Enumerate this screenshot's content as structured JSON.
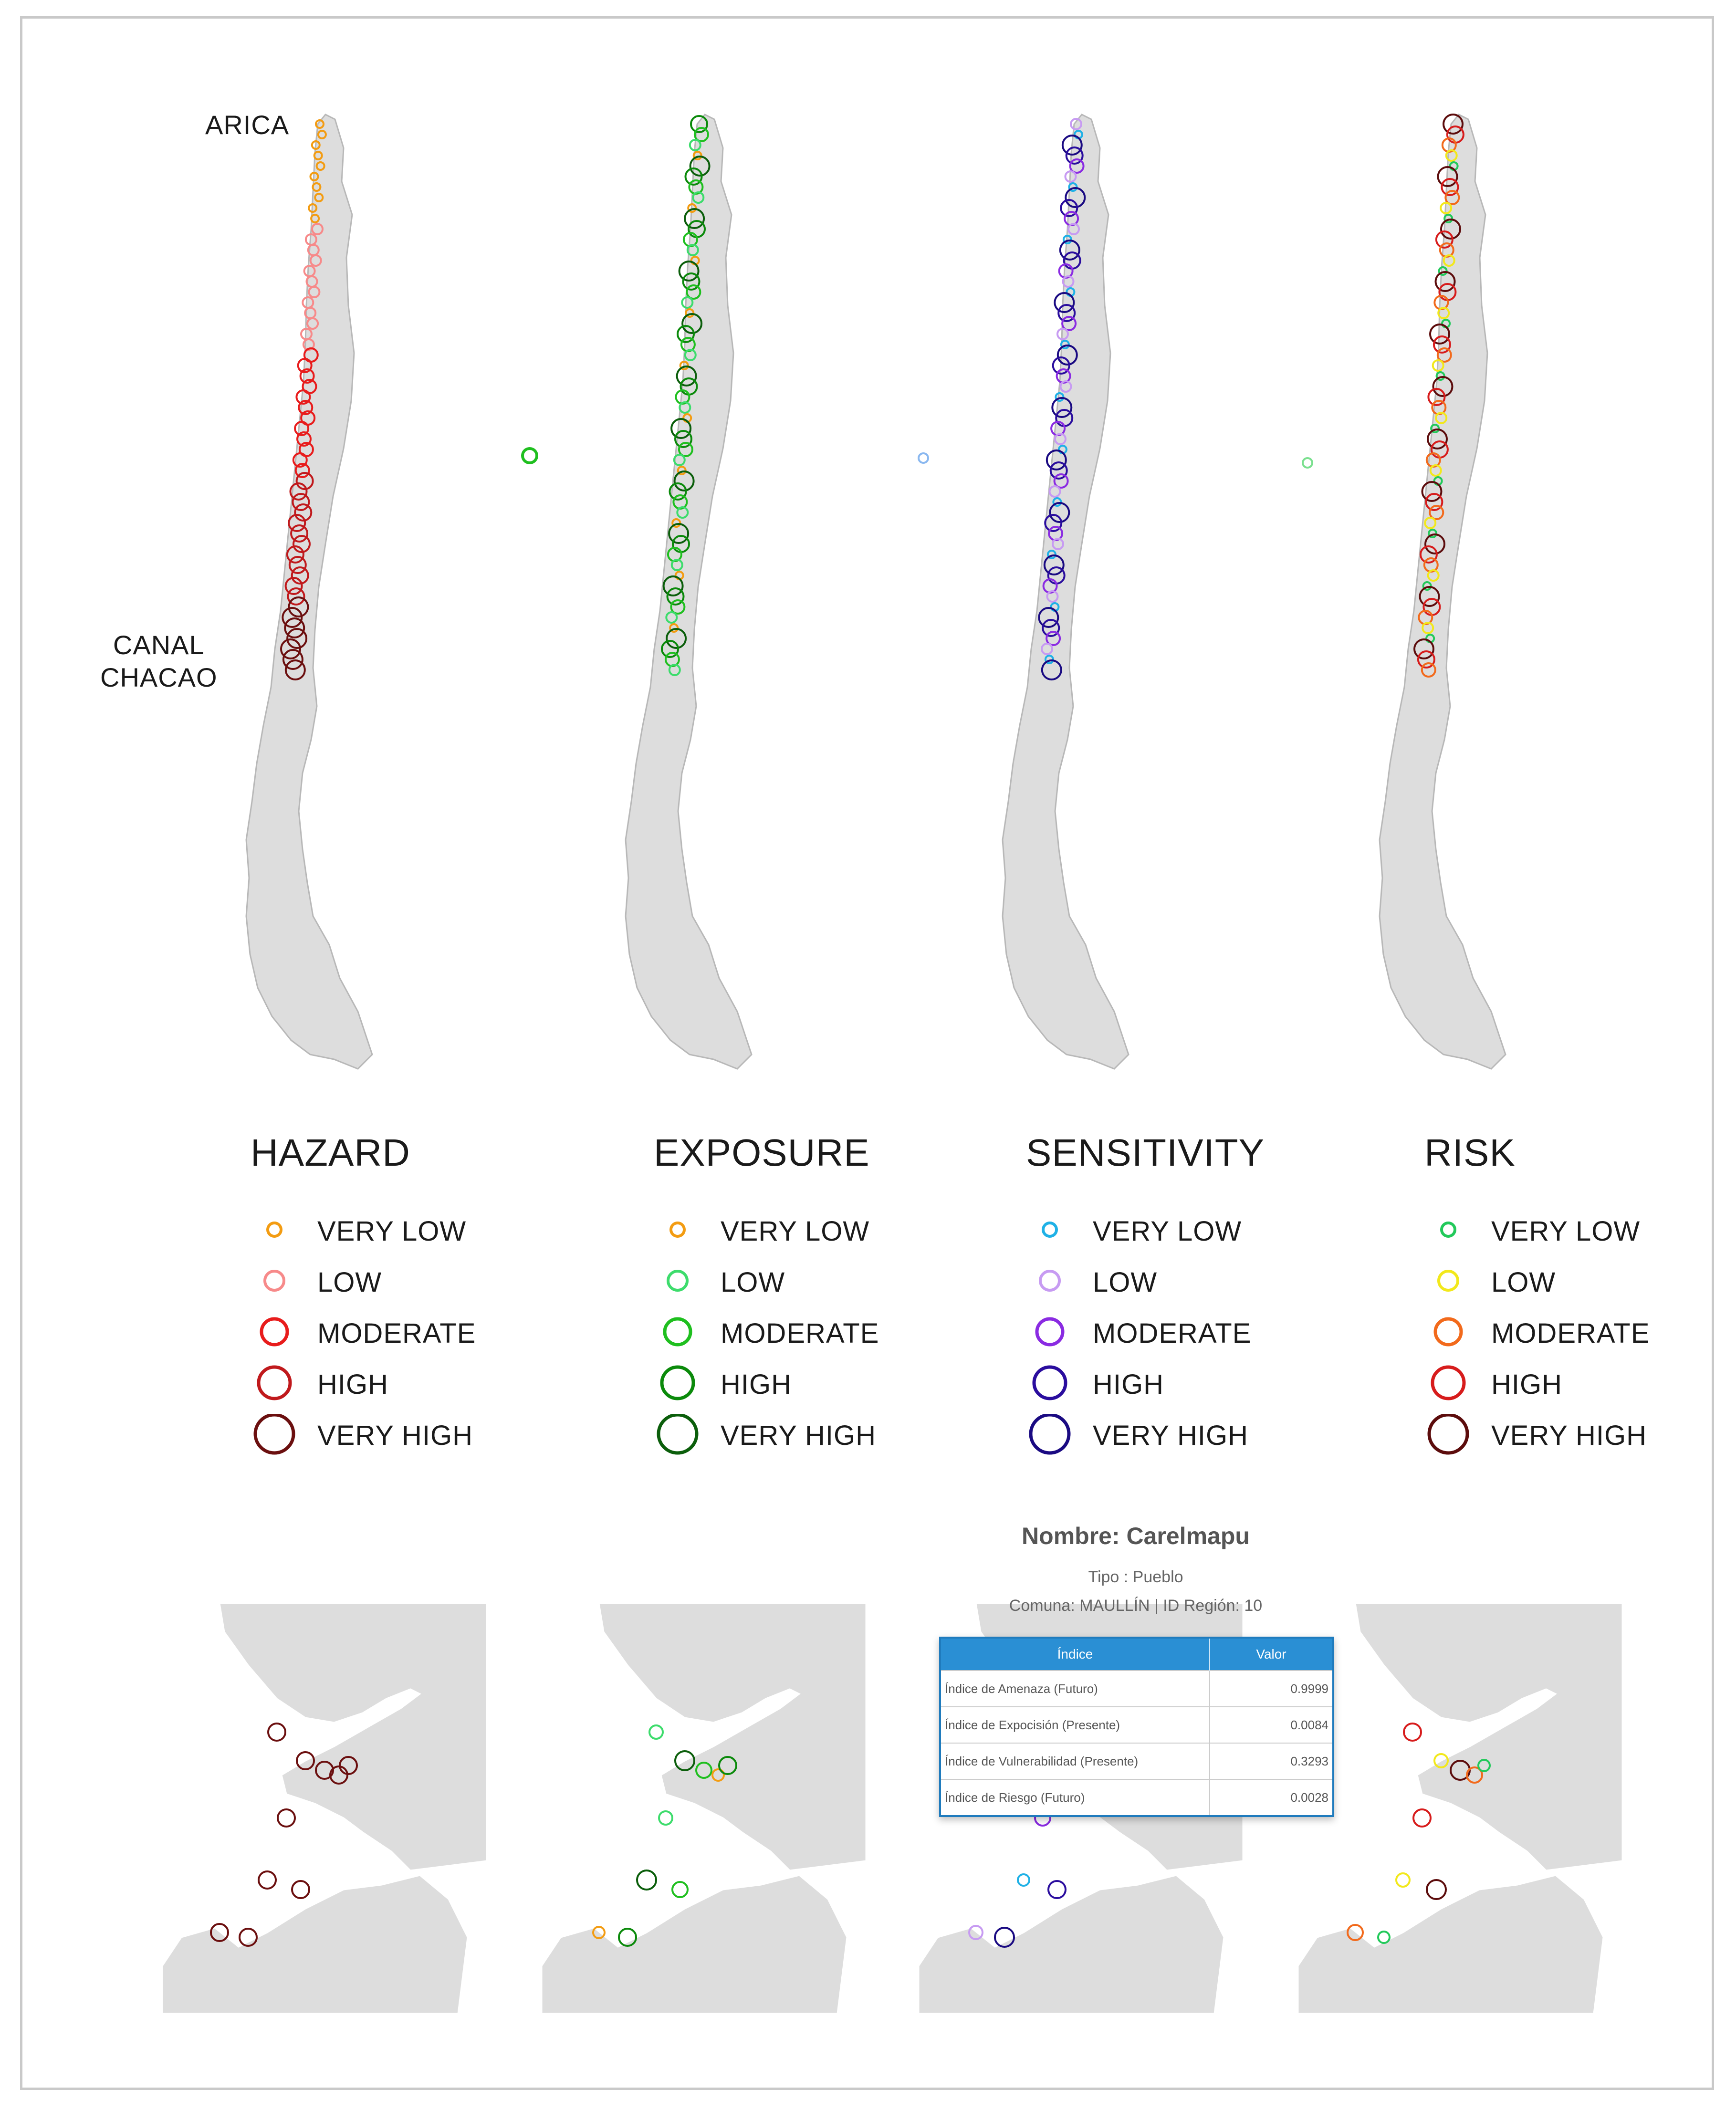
{
  "places": {
    "north": "ARICA",
    "south_line1": "CANAL",
    "south_line2": "CHACAO"
  },
  "legends": [
    {
      "title": "HAZARD",
      "levels": [
        "VERY LOW",
        "LOW",
        "MODERATE",
        "HIGH",
        "VERY HIGH"
      ],
      "colors": [
        "#f39c12",
        "#f78a8a",
        "#e81c1c",
        "#c0191c",
        "#6b0f0f"
      ]
    },
    {
      "title": "EXPOSURE",
      "levels": [
        "VERY LOW",
        "LOW",
        "MODERATE",
        "HIGH",
        "VERY HIGH"
      ],
      "colors": [
        "#f39c12",
        "#3ddc6c",
        "#1fbf1f",
        "#0b8a0b",
        "#0b5e0b"
      ]
    },
    {
      "title": "SENSITIVITY",
      "levels": [
        "VERY LOW",
        "LOW",
        "MODERATE",
        "HIGH",
        "VERY HIGH"
      ],
      "colors": [
        "#1fb1e6",
        "#c79bf2",
        "#8a2be2",
        "#2a0d9e",
        "#1a0a82"
      ]
    },
    {
      "title": "RISK",
      "levels": [
        "VERY LOW",
        "LOW",
        "MODERATE",
        "HIGH",
        "VERY HIGH"
      ],
      "colors": [
        "#22c95a",
        "#f2e81c",
        "#f26a1c",
        "#d71c1c",
        "#5c0c0c"
      ]
    }
  ],
  "popup": {
    "title": "Nombre: Carelmapu",
    "type_line": "Tipo : Pueblo",
    "comuna_line": "Comuna: MAULLÍN  |  ID Región: 10",
    "headers": [
      "Índice",
      "Valor"
    ],
    "rows": [
      {
        "label": "Índice de Amenaza (Futuro)",
        "value": "0.9999"
      },
      {
        "label": "Índice de Expocisión (Presente)",
        "value": "0.0084"
      },
      {
        "label": "Índice de Vulnerabilidad (Presente)",
        "value": "0.3293"
      },
      {
        "label": "Índice de Riesgo (Futuro)",
        "value": "0.0028"
      }
    ]
  },
  "colors": {
    "land": "#dddddd",
    "border": "#b8b8b8",
    "frame": "#c9c9c9",
    "table_header": "#2a8fd4"
  }
}
